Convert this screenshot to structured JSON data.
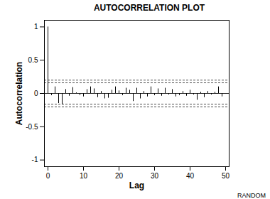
{
  "chart_data": {
    "type": "stem",
    "title": "AUTOCORRELATION PLOT",
    "caption": "RANDOM",
    "x_label": "Lag",
    "y_label": "Autocorrelation",
    "x": [
      0,
      1,
      2,
      3,
      4,
      5,
      6,
      7,
      8,
      9,
      10,
      11,
      12,
      13,
      14,
      15,
      16,
      17,
      18,
      19,
      20,
      21,
      22,
      23,
      24,
      25,
      26,
      27,
      28,
      29,
      30,
      31,
      32,
      33,
      34,
      35,
      36,
      37,
      38,
      39,
      40,
      41,
      42,
      43,
      44,
      45,
      46,
      47,
      48,
      49
    ],
    "values": [
      1,
      -0.03,
      0.1,
      -0.15,
      -0.17,
      0.06,
      -0.04,
      0.09,
      0.01,
      -0.03,
      -0.05,
      0.06,
      0.1,
      0.07,
      -0.06,
      0.03,
      -0.08,
      -0.07,
      0.05,
      0.1,
      0.04,
      -0.03,
      0.08,
      0.05,
      -0.12,
      0.08,
      -0.08,
      0.03,
      -0.05,
      0.1,
      -0.03,
      0.07,
      -0.04,
      0.08,
      -0.02,
      0.06,
      -0.05,
      -0.03,
      0.03,
      -0.04,
      0.05,
      -0.02,
      -0.1,
      0.02,
      -0.06,
      0.03,
      -0.02,
      0.02,
      0.1,
      -0.05
    ],
    "color": "#000000",
    "baseline": 0,
    "reference_lines": {
      "values": [
        0.2,
        0.16,
        -0.16,
        -0.2
      ],
      "line_style": "dashed"
    },
    "xlim": [
      -1,
      51
    ],
    "xticks": [
      0,
      10,
      20,
      30,
      40,
      50
    ],
    "ylim": [
      -1.1,
      1.1
    ],
    "yticks": [
      -1,
      -0.5,
      0,
      0.5,
      1
    ],
    "grid": false
  }
}
